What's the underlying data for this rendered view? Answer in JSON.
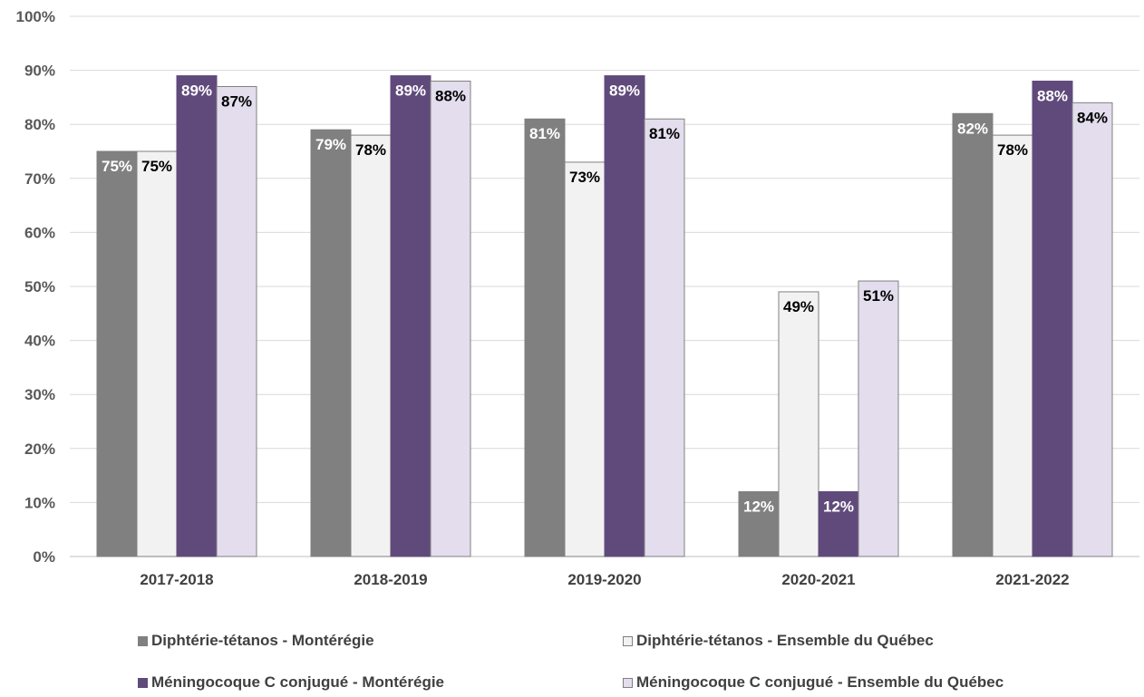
{
  "chart_data": {
    "type": "bar",
    "categories": [
      "2017-2018",
      "2018-2019",
      "2019-2020",
      "2020-2021",
      "2021-2022"
    ],
    "series": [
      {
        "name": "Diphtérie-tétanos - Montérégie",
        "values": [
          75,
          79,
          81,
          12,
          82
        ],
        "labels": [
          "75%",
          "79%",
          "81%",
          "12%",
          "82%"
        ],
        "color": "#808080",
        "border": "#808080",
        "label_color": "#ffffff"
      },
      {
        "name": "Diphtérie-tétanos - Ensemble du Québec",
        "values": [
          75,
          78,
          73,
          49,
          78
        ],
        "labels": [
          "75%",
          "78%",
          "73%",
          "49%",
          "78%"
        ],
        "color": "#f2f2f2",
        "border": "#808080",
        "label_color": "#000000"
      },
      {
        "name": "Méningocoque C conjugué - Montérégie",
        "values": [
          89,
          89,
          89,
          12,
          88
        ],
        "labels": [
          "89%",
          "89%",
          "89%",
          "12%",
          "88%"
        ],
        "color": "#604a7b",
        "border": "#604a7b",
        "label_color": "#ffffff"
      },
      {
        "name": "Méningocoque C conjugué  - Ensemble du Québec",
        "values": [
          87,
          88,
          81,
          51,
          84
        ],
        "labels": [
          "87%",
          "88%",
          "81%",
          "51%",
          "84%"
        ],
        "color": "#e3dded",
        "border": "#808080",
        "label_color": "#000000"
      }
    ],
    "ylim": [
      0,
      100
    ],
    "yticks": [
      "0%",
      "10%",
      "20%",
      "30%",
      "40%",
      "50%",
      "60%",
      "70%",
      "80%",
      "90%",
      "100%"
    ],
    "grid": true,
    "legend_position": "bottom",
    "title": "",
    "xlabel": "",
    "ylabel": ""
  }
}
